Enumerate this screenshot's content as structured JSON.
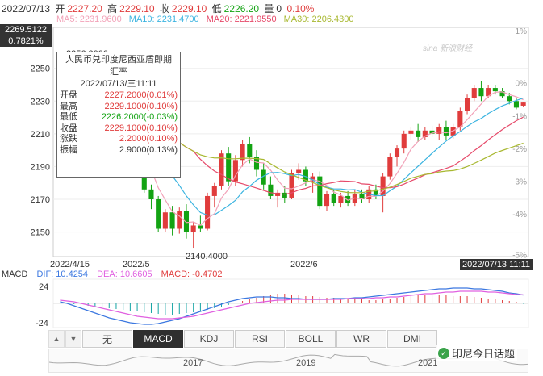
{
  "header": {
    "date": "2022/07/13",
    "open_label": "开",
    "open_value": "2227.20",
    "high_label": "高",
    "high_value": "2229.10",
    "close_label": "收",
    "close_value": "2229.10",
    "low_label": "低",
    "low_value": "2226.20",
    "volume_label": "量",
    "volume_value": "0",
    "change_pct": "0.10%"
  },
  "ma": {
    "ma5": "MA5: 2231.9600",
    "ma10": "MA10: 2231.4700",
    "ma20": "MA20: 2221.9550",
    "ma30": "MA30: 2206.4300"
  },
  "colors": {
    "up": "#e03c3c",
    "down": "#13a313",
    "ma5": "#f2a2b8",
    "ma10": "#3cb4e0",
    "ma20": "#e64a6a",
    "ma30": "#a8b830"
  },
  "price_axis": {
    "current_price": "2269.5122",
    "current_pct": "0.7821%",
    "labels": [
      "2250",
      "2230",
      "2210",
      "2190",
      "2170",
      "2150"
    ],
    "pct_labels": [
      "0%",
      "-1%",
      "-2%",
      "-3%",
      "-4%",
      "-5%"
    ],
    "top_pct_label": "1%",
    "max_label": "2256.3000",
    "min_label": "2140.4000"
  },
  "date_axis": {
    "labels": [
      "2022/4/15",
      "2022/5",
      "2022/6"
    ],
    "current_time": "2022/07/13 11:11"
  },
  "tooltip": {
    "title_line1": "人民币兑印度尼西亚盾即期",
    "title_line2": "汇率",
    "datetime": "2022/07/13/三11:11",
    "rows": [
      {
        "label": "开盘",
        "value": "2227.2000(0.01%)",
        "tone": "red"
      },
      {
        "label": "最高",
        "value": "2229.1000(0.10%)",
        "tone": "red"
      },
      {
        "label": "最低",
        "value": "2226.2000(-0.03%)",
        "tone": "green"
      },
      {
        "label": "收盘",
        "value": "2229.1000(0.10%)",
        "tone": "red"
      },
      {
        "label": "涨跌",
        "value": "2.2000(0.10%)",
        "tone": "red"
      },
      {
        "label": "振幅",
        "value": "2.9000(0.13%)",
        "tone": "plain"
      }
    ]
  },
  "macd": {
    "name": "MACD",
    "dif": "DIF: 10.4254",
    "dea": "DEA: 10.6605",
    "macd": "MACD: -0.4702",
    "axis_top": "24",
    "axis_bottom": "-24"
  },
  "tabs": {
    "items": [
      "无",
      "MACD",
      "KDJ",
      "RSI",
      "BOLL",
      "WR",
      "DMI"
    ],
    "active": "MACD"
  },
  "overview": {
    "years": [
      "2017",
      "2019",
      "2021"
    ]
  },
  "watermark": "sina 新浪财经",
  "badge": {
    "text": "印尼今日话题"
  },
  "chart_data": {
    "type": "candlestick",
    "ylim": [
      2135,
      2275
    ],
    "x_start": "2022/4/15",
    "x_end": "2022/07/13",
    "candles": [
      {
        "o": 2254,
        "h": 2256.3,
        "l": 2250,
        "c": 2252
      },
      {
        "o": 2252,
        "h": 2255,
        "l": 2248,
        "c": 2250
      },
      {
        "o": 2250,
        "h": 2252,
        "l": 2240,
        "c": 2243
      },
      {
        "o": 2243,
        "h": 2246,
        "l": 2236,
        "c": 2240
      },
      {
        "o": 2240,
        "h": 2242,
        "l": 2232,
        "c": 2235
      },
      {
        "o": 2235,
        "h": 2238,
        "l": 2228,
        "c": 2231
      },
      {
        "o": 2231,
        "h": 2234,
        "l": 2224,
        "c": 2227
      },
      {
        "o": 2227,
        "h": 2229,
        "l": 2218,
        "c": 2221
      },
      {
        "o": 2221,
        "h": 2224,
        "l": 2212,
        "c": 2215
      },
      {
        "o": 2215,
        "h": 2218,
        "l": 2205,
        "c": 2208
      },
      {
        "o": 2208,
        "h": 2211,
        "l": 2196,
        "c": 2199
      },
      {
        "o": 2199,
        "h": 2202,
        "l": 2185,
        "c": 2188
      },
      {
        "o": 2188,
        "h": 2191,
        "l": 2174,
        "c": 2176
      },
      {
        "o": 2176,
        "h": 2179,
        "l": 2164,
        "c": 2170
      },
      {
        "o": 2170,
        "h": 2172,
        "l": 2150,
        "c": 2152
      },
      {
        "o": 2152,
        "h": 2164,
        "l": 2150,
        "c": 2162
      },
      {
        "o": 2162,
        "h": 2166,
        "l": 2148,
        "c": 2152
      },
      {
        "o": 2152,
        "h": 2165,
        "l": 2149,
        "c": 2163
      },
      {
        "o": 2163,
        "h": 2167,
        "l": 2146,
        "c": 2150
      },
      {
        "o": 2150,
        "h": 2156,
        "l": 2140.4,
        "c": 2154
      },
      {
        "o": 2154,
        "h": 2160,
        "l": 2150,
        "c": 2152
      },
      {
        "o": 2152,
        "h": 2174,
        "l": 2151,
        "c": 2172
      },
      {
        "o": 2172,
        "h": 2180,
        "l": 2165,
        "c": 2178
      },
      {
        "o": 2178,
        "h": 2200,
        "l": 2176,
        "c": 2198
      },
      {
        "o": 2198,
        "h": 2202,
        "l": 2178,
        "c": 2181
      },
      {
        "o": 2181,
        "h": 2197,
        "l": 2178,
        "c": 2194
      },
      {
        "o": 2194,
        "h": 2206,
        "l": 2190,
        "c": 2204
      },
      {
        "o": 2204,
        "h": 2208,
        "l": 2192,
        "c": 2196
      },
      {
        "o": 2196,
        "h": 2200,
        "l": 2184,
        "c": 2188
      },
      {
        "o": 2188,
        "h": 2192,
        "l": 2176,
        "c": 2179
      },
      {
        "o": 2179,
        "h": 2184,
        "l": 2170,
        "c": 2172
      },
      {
        "o": 2172,
        "h": 2176,
        "l": 2165,
        "c": 2174
      },
      {
        "o": 2174,
        "h": 2178,
        "l": 2168,
        "c": 2171
      },
      {
        "o": 2171,
        "h": 2188,
        "l": 2170,
        "c": 2186
      },
      {
        "o": 2186,
        "h": 2192,
        "l": 2182,
        "c": 2188
      },
      {
        "o": 2188,
        "h": 2190,
        "l": 2178,
        "c": 2181
      },
      {
        "o": 2181,
        "h": 2186,
        "l": 2174,
        "c": 2184
      },
      {
        "o": 2184,
        "h": 2187,
        "l": 2164,
        "c": 2166
      },
      {
        "o": 2166,
        "h": 2175,
        "l": 2163,
        "c": 2173
      },
      {
        "o": 2173,
        "h": 2176,
        "l": 2166,
        "c": 2168
      },
      {
        "o": 2168,
        "h": 2174,
        "l": 2165,
        "c": 2172
      },
      {
        "o": 2172,
        "h": 2175,
        "l": 2166,
        "c": 2168
      },
      {
        "o": 2168,
        "h": 2176,
        "l": 2166,
        "c": 2173
      },
      {
        "o": 2173,
        "h": 2176,
        "l": 2168,
        "c": 2170
      },
      {
        "o": 2170,
        "h": 2178,
        "l": 2168,
        "c": 2176
      },
      {
        "o": 2176,
        "h": 2179,
        "l": 2170,
        "c": 2172
      },
      {
        "o": 2172,
        "h": 2186,
        "l": 2162,
        "c": 2184
      },
      {
        "o": 2184,
        "h": 2198,
        "l": 2182,
        "c": 2196
      },
      {
        "o": 2196,
        "h": 2203,
        "l": 2190,
        "c": 2201
      },
      {
        "o": 2201,
        "h": 2212,
        "l": 2198,
        "c": 2210
      },
      {
        "o": 2210,
        "h": 2214,
        "l": 2206,
        "c": 2212
      },
      {
        "o": 2212,
        "h": 2216,
        "l": 2205,
        "c": 2208
      },
      {
        "o": 2208,
        "h": 2214,
        "l": 2206,
        "c": 2212
      },
      {
        "o": 2212,
        "h": 2215,
        "l": 2208,
        "c": 2210
      },
      {
        "o": 2210,
        "h": 2216,
        "l": 2206,
        "c": 2214
      },
      {
        "o": 2214,
        "h": 2218,
        "l": 2206,
        "c": 2209
      },
      {
        "o": 2209,
        "h": 2216,
        "l": 2207,
        "c": 2214
      },
      {
        "o": 2214,
        "h": 2226,
        "l": 2212,
        "c": 2224
      },
      {
        "o": 2224,
        "h": 2234,
        "l": 2222,
        "c": 2232
      },
      {
        "o": 2232,
        "h": 2240,
        "l": 2230,
        "c": 2238
      },
      {
        "o": 2238,
        "h": 2242,
        "l": 2230,
        "c": 2233
      },
      {
        "o": 2233,
        "h": 2240,
        "l": 2232,
        "c": 2238
      },
      {
        "o": 2238,
        "h": 2240,
        "l": 2234,
        "c": 2236
      },
      {
        "o": 2236,
        "h": 2238,
        "l": 2232,
        "c": 2233
      },
      {
        "o": 2233,
        "h": 2235,
        "l": 2228,
        "c": 2230
      },
      {
        "o": 2230,
        "h": 2232,
        "l": 2225,
        "c": 2226
      },
      {
        "o": 2227.2,
        "h": 2229.1,
        "l": 2226.2,
        "c": 2229.1
      }
    ],
    "macd_hist_ylim": [
      -30,
      30
    ],
    "macd_hist": [
      1,
      0,
      -1,
      -2,
      -3,
      -4,
      -5,
      -6,
      -7,
      -8,
      -9,
      -10,
      -11,
      -12,
      -13,
      -14,
      -14,
      -13,
      -12,
      -11,
      -10,
      -8,
      -6,
      -4,
      -2,
      1,
      3,
      5,
      7,
      9,
      11,
      12,
      12,
      11,
      10,
      9,
      9,
      8,
      7,
      7,
      6,
      6,
      5,
      5,
      4,
      4,
      5,
      6,
      7,
      8,
      9,
      10,
      11,
      11,
      10,
      10,
      9,
      9,
      9,
      8,
      7,
      6,
      5,
      4,
      3,
      2,
      -0.47
    ],
    "dif": [
      2,
      0,
      -3,
      -6,
      -9,
      -12,
      -15,
      -18,
      -20,
      -22,
      -24,
      -25,
      -26,
      -26,
      -25,
      -23,
      -21,
      -19,
      -16,
      -13,
      -10,
      -7,
      -4,
      -1,
      2,
      4,
      6,
      7,
      8,
      8,
      8,
      7,
      7,
      6,
      6,
      5,
      5,
      5,
      5,
      6,
      6,
      6,
      7,
      7,
      8,
      9,
      10,
      11,
      12,
      13,
      14,
      15,
      16,
      17,
      18,
      18,
      19,
      19,
      19,
      18,
      18,
      17,
      16,
      15,
      13,
      12,
      10.4254
    ],
    "dea": [
      4,
      3,
      2,
      0,
      -2,
      -4,
      -6,
      -8,
      -10,
      -12,
      -14,
      -16,
      -17,
      -18,
      -19,
      -19,
      -19,
      -18,
      -17,
      -16,
      -14,
      -12,
      -10,
      -8,
      -6,
      -4,
      -2,
      0,
      1,
      2,
      3,
      4,
      4,
      5,
      5,
      5,
      5,
      5,
      5,
      5,
      5,
      6,
      6,
      6,
      6,
      7,
      7,
      8,
      8,
      9,
      10,
      11,
      12,
      12,
      13,
      14,
      14,
      15,
      15,
      15,
      15,
      14,
      14,
      13,
      12,
      11,
      10.6605
    ]
  }
}
